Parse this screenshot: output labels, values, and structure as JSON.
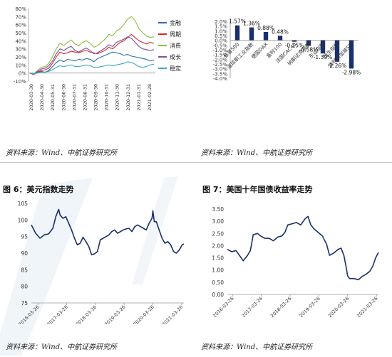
{
  "colors": {
    "navy": "#1a2f6b",
    "jinrong": "#2e6bb0",
    "zhouqi": "#d42a2a",
    "xiaofei": "#8cbf3f",
    "chengzhang": "#7650a0",
    "wending": "#3aa8c8",
    "watermark": "#e6eef6"
  },
  "sources": {
    "s1": "资料来源：Wind、中航证券研究所",
    "s2": "资料来源：Wind、中航证券研究所",
    "s3": "资料来源：Wind、中航证券研究所",
    "s4": "资料来源：Wind、中航证券研究所"
  },
  "captions": {
    "fig6": "图 6：美元指数走势",
    "fig7": "图 7：美国十年国债收益率走势"
  },
  "chart_data": [
    {
      "id": "style-index",
      "type": "line",
      "title": "",
      "xlabel": "",
      "ylabel": "",
      "ylim": [
        -10,
        80
      ],
      "yticks": [
        -10,
        0,
        10,
        20,
        30,
        40,
        50,
        60,
        70,
        80
      ],
      "ytick_labels": [
        "-10%",
        "0%",
        "10%",
        "20%",
        "30%",
        "40%",
        "50%",
        "60%",
        "70%",
        "80%"
      ],
      "x_tick_labels": [
        "2020-03-30",
        "2020-04-30",
        "2020-05-31",
        "2020-06-30",
        "2020-07-31",
        "2020-08-31",
        "2020-09-30",
        "2020-10-31",
        "2020-11-30",
        "2020-12-31",
        "2021-01-31",
        "2021-02-28"
      ],
      "legend_position": "right",
      "series": [
        {
          "name": "金融",
          "color_key": "jinrong",
          "values": [
            0,
            -1,
            1,
            2,
            1,
            3,
            8,
            13,
            16,
            14,
            17,
            16,
            15,
            17,
            16,
            18,
            17,
            14,
            18,
            20,
            22,
            24,
            26,
            25,
            24,
            22,
            23,
            21,
            20,
            19,
            18,
            17,
            15,
            16
          ]
        },
        {
          "name": "周期",
          "color_key": "zhouqi",
          "values": [
            0,
            -2,
            1,
            3,
            4,
            6,
            12,
            20,
            26,
            24,
            25,
            27,
            26,
            25,
            27,
            28,
            26,
            25,
            24,
            26,
            28,
            32,
            30,
            34,
            38,
            40,
            44,
            48,
            44,
            40,
            38,
            36,
            38,
            37
          ]
        },
        {
          "name": "消费",
          "color_key": "xiaofei",
          "values": [
            0,
            -1,
            3,
            7,
            8,
            12,
            20,
            30,
            37,
            34,
            38,
            41,
            36,
            34,
            38,
            40,
            37,
            32,
            34,
            38,
            42,
            48,
            46,
            52,
            55,
            60,
            67,
            70,
            65,
            55,
            50,
            46,
            44,
            45
          ]
        },
        {
          "name": "成长",
          "color_key": "chengzhang",
          "values": [
            0,
            -2,
            2,
            5,
            6,
            9,
            15,
            24,
            30,
            28,
            31,
            33,
            28,
            26,
            29,
            31,
            28,
            24,
            25,
            28,
            31,
            35,
            33,
            38,
            40,
            42,
            45,
            43,
            38,
            33,
            30,
            29,
            28,
            29
          ]
        },
        {
          "name": "稳定",
          "color_key": "wending",
          "values": [
            0,
            -1,
            0,
            1,
            1,
            2,
            4,
            7,
            9,
            8,
            9,
            10,
            8,
            8,
            9,
            10,
            9,
            7,
            7,
            8,
            9,
            10,
            9,
            10,
            11,
            12,
            14,
            13,
            11,
            8,
            7,
            8,
            10,
            11
          ]
        }
      ]
    },
    {
      "id": "global-index",
      "type": "bar",
      "title": "",
      "ylim": [
        -4.0,
        2.0
      ],
      "yticks": [
        2.0,
        1.5,
        1.0,
        0.5,
        0.0,
        -0.5,
        -1.0,
        -1.5,
        -2.0,
        -2.5,
        -3.0,
        -3.5,
        -4.0
      ],
      "ytick_labels": [
        "2.0%",
        "1.5%",
        "1.0%",
        "0.5%",
        "0.0%",
        "-0.5%",
        "-1.0%",
        "-1.5%",
        "-2.0%",
        "-2.5%",
        "-3.0%",
        "-3.5%",
        "-4.0%"
      ],
      "categories": [
        "标普500",
        "道琼斯工业指数",
        "德国DAX",
        "富时100",
        "法国CAC40",
        "纳斯达克指数",
        "东证指数",
        "恒生指数",
        "富时新加坡STI"
      ],
      "values": [
        1.57,
        1.36,
        0.88,
        0.48,
        -0.15,
        -0.58,
        -1.39,
        -2.26,
        -2.98
      ],
      "data_labels": [
        "1.57%",
        "1.36%",
        "0.88%",
        "0.48%",
        "-0.15%",
        "-0.58%",
        "-1.39%",
        "-2.26%",
        "-2.98%"
      ]
    },
    {
      "id": "usd-index",
      "type": "line",
      "title": "",
      "ylim": [
        75,
        105
      ],
      "yticks": [
        75,
        80,
        85,
        90,
        95,
        100,
        105
      ],
      "ytick_labels": [
        "75",
        "80",
        "85",
        "90",
        "95",
        "100",
        "105"
      ],
      "x_tick_labels": [
        "2016-03-26",
        "2017-03-26",
        "2018-03-26",
        "2019-03-26",
        "2020-03-26",
        "2021-03-26"
      ],
      "x_range": [
        2016.23,
        2021.23
      ],
      "x_max": 2021.31,
      "series": [
        {
          "name": "",
          "color_key": "navy",
          "x": [
            2016.0,
            2016.15,
            2016.3,
            2016.45,
            2016.6,
            2016.75,
            2016.85,
            2016.95,
            2017.0,
            2017.1,
            2017.2,
            2017.3,
            2017.4,
            2017.5,
            2017.6,
            2017.7,
            2017.8,
            2017.9,
            2018.0,
            2018.1,
            2018.2,
            2018.3,
            2018.4,
            2018.5,
            2018.6,
            2018.7,
            2018.8,
            2018.9,
            2019.0,
            2019.1,
            2019.2,
            2019.3,
            2019.4,
            2019.5,
            2019.6,
            2019.7,
            2019.8,
            2019.9,
            2020.0,
            2020.1,
            2020.2,
            2020.23,
            2020.28,
            2020.35,
            2020.45,
            2020.55,
            2020.65,
            2020.75,
            2020.85,
            2020.95,
            2021.05,
            2021.15,
            2021.25,
            2021.31
          ],
          "values": [
            98.5,
            96.0,
            94.5,
            95.5,
            95.8,
            97.5,
            101.0,
            103.2,
            101.5,
            100.5,
            101.0,
            99.0,
            97.0,
            94.5,
            92.5,
            93.0,
            94.8,
            93.5,
            92.0,
            89.5,
            89.8,
            90.5,
            94.0,
            94.5,
            95.0,
            95.5,
            96.5,
            97.0,
            96.0,
            96.5,
            97.0,
            97.3,
            97.5,
            96.5,
            98.0,
            98.5,
            98.0,
            97.5,
            97.0,
            99.0,
            100.5,
            102.8,
            99.5,
            99.5,
            97.0,
            94.5,
            93.0,
            93.5,
            92.5,
            90.5,
            90.0,
            91.0,
            92.5,
            92.8
          ]
        }
      ]
    },
    {
      "id": "us10y",
      "type": "line",
      "title": "",
      "ylim": [
        0.0,
        3.5
      ],
      "yticks": [
        0.0,
        0.5,
        1.0,
        1.5,
        2.0,
        2.5,
        3.0,
        3.5
      ],
      "ytick_labels": [
        "0.00",
        "0.50",
        "1.00",
        "1.50",
        "2.00",
        "2.50",
        "3.00",
        "3.50"
      ],
      "x_tick_labels": [
        "2016-03-26",
        "2017-03-26",
        "2018-03-26",
        "2019-03-26",
        "2020-03-26",
        "2021-03-26"
      ],
      "x_range": [
        2016.23,
        2021.23
      ],
      "x_max": 2021.3,
      "series": [
        {
          "name": "",
          "color_key": "navy",
          "x": [
            2016.05,
            2016.2,
            2016.35,
            2016.5,
            2016.6,
            2016.75,
            2016.85,
            2016.95,
            2017.1,
            2017.2,
            2017.35,
            2017.5,
            2017.65,
            2017.8,
            2017.95,
            2018.05,
            2018.15,
            2018.3,
            2018.45,
            2018.6,
            2018.75,
            2018.85,
            2018.95,
            2019.05,
            2019.2,
            2019.35,
            2019.5,
            2019.6,
            2019.75,
            2019.9,
            2020.0,
            2020.1,
            2020.18,
            2020.23,
            2020.3,
            2020.45,
            2020.6,
            2020.75,
            2020.9,
            2021.0,
            2021.1,
            2021.2,
            2021.3
          ],
          "values": [
            1.85,
            1.75,
            1.8,
            1.55,
            1.38,
            1.6,
            1.8,
            2.45,
            2.5,
            2.4,
            2.3,
            2.3,
            2.2,
            2.35,
            2.4,
            2.55,
            2.85,
            2.9,
            2.95,
            2.85,
            3.1,
            3.2,
            2.85,
            2.7,
            2.55,
            2.4,
            2.05,
            1.6,
            1.7,
            1.85,
            1.9,
            1.6,
            1.1,
            0.75,
            0.65,
            0.65,
            0.6,
            0.75,
            0.85,
            0.95,
            1.15,
            1.5,
            1.72
          ]
        }
      ]
    }
  ]
}
